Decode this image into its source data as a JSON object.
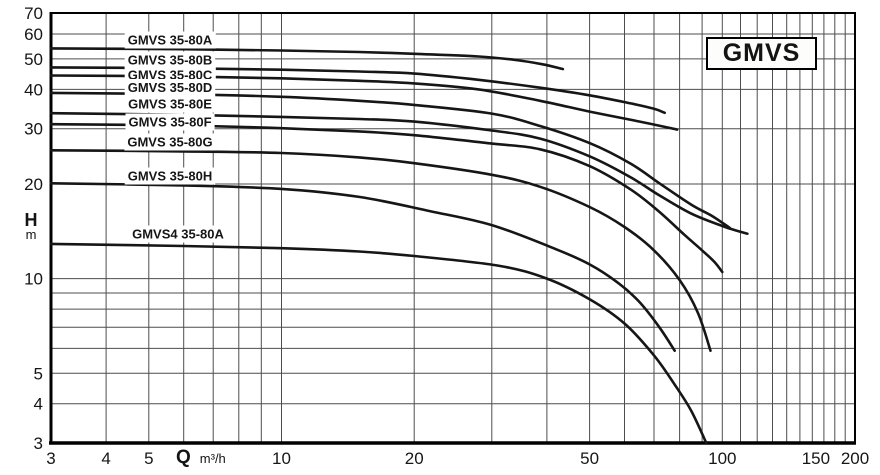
{
  "title_box": {
    "label": "GMVS"
  },
  "axes": {
    "x": {
      "symbol": "Q",
      "unit": "m³/h",
      "scale": "log",
      "min": 3,
      "max": 200,
      "tick_labels": [
        "3",
        "4",
        "5",
        "10",
        "20",
        "50",
        "100",
        "150",
        "200"
      ],
      "tick_values": [
        3,
        4,
        5,
        10,
        20,
        50,
        100,
        150,
        200
      ],
      "gridline_values": [
        3,
        4,
        5,
        6,
        7,
        8,
        9,
        10,
        20,
        30,
        40,
        50,
        60,
        70,
        80,
        90,
        100,
        110,
        120,
        130,
        140,
        150,
        160,
        170,
        180,
        190,
        200
      ]
    },
    "y": {
      "symbol": "H",
      "unit": "m",
      "scale": "log",
      "min": 3,
      "max": 70,
      "tick_labels": [
        "70",
        "60",
        "50",
        "40",
        "30",
        "20",
        "10",
        "5",
        "4",
        "3"
      ],
      "tick_values": [
        70,
        60,
        50,
        40,
        30,
        20,
        10,
        5,
        4,
        3
      ],
      "gridline_values": [
        3,
        4,
        5,
        6,
        7,
        8,
        9,
        10,
        20,
        30,
        40,
        50,
        60,
        70
      ]
    }
  },
  "chart_data": {
    "type": "line",
    "title": "GMVS",
    "xlabel": "Q (m³/h)",
    "ylabel": "H (m)",
    "x_scale": "log",
    "y_scale": "log",
    "xlim": [
      3,
      200
    ],
    "ylim": [
      3,
      70
    ],
    "grid": true,
    "legend_position": "labels-on-curves",
    "series": [
      {
        "name": "GMVS 35-80A",
        "points": [
          [
            3,
            54
          ],
          [
            6,
            53.7
          ],
          [
            10,
            53.2
          ],
          [
            15,
            52.6
          ],
          [
            20,
            51.9
          ],
          [
            28,
            50.9
          ],
          [
            34,
            49.6
          ],
          [
            39,
            48.1
          ],
          [
            43.5,
            46.4
          ]
        ]
      },
      {
        "name": "GMVS 35-80B",
        "points": [
          [
            3,
            47
          ],
          [
            6,
            46.7
          ],
          [
            10,
            46.2
          ],
          [
            15,
            45.6
          ],
          [
            20,
            44.9
          ],
          [
            28,
            42.9
          ],
          [
            38.6,
            40.5
          ],
          [
            50,
            38.3
          ],
          [
            62,
            36.1
          ],
          [
            70,
            34.7
          ],
          [
            74,
            33.7
          ]
        ]
      },
      {
        "name": "GMVS 35-80C",
        "points": [
          [
            3,
            44.3
          ],
          [
            6,
            44
          ],
          [
            10,
            43.4
          ],
          [
            15,
            42.6
          ],
          [
            20,
            41.8
          ],
          [
            28,
            40
          ],
          [
            38.6,
            36.8
          ],
          [
            50,
            34
          ],
          [
            65,
            31.6
          ],
          [
            74,
            30.4
          ],
          [
            79,
            29.8
          ]
        ]
      },
      {
        "name": "GMVS 35-80D",
        "points": [
          [
            3,
            39
          ],
          [
            6,
            38.6
          ],
          [
            10,
            37.9
          ],
          [
            15,
            36.8
          ],
          [
            20,
            35.7
          ],
          [
            30,
            33.5
          ],
          [
            38.6,
            30.6
          ],
          [
            50,
            27
          ],
          [
            62,
            23.2
          ],
          [
            72,
            20.1
          ],
          [
            85,
            17.2
          ],
          [
            95,
            15.8
          ],
          [
            104,
            14.5
          ]
        ]
      },
      {
        "name": "GMVS 35-80E",
        "points": [
          [
            3,
            33.6
          ],
          [
            6,
            33.2
          ],
          [
            10,
            32.7
          ],
          [
            15,
            32.2
          ],
          [
            20,
            31.6
          ],
          [
            30,
            29.6
          ],
          [
            38.6,
            27.9
          ],
          [
            50,
            24.5
          ],
          [
            62,
            21
          ],
          [
            72,
            18.4
          ],
          [
            85,
            16.1
          ],
          [
            100,
            14.7
          ],
          [
            108,
            14.2
          ],
          [
            114,
            13.9
          ]
        ]
      },
      {
        "name": "GMVS 35-80F",
        "points": [
          [
            3,
            31
          ],
          [
            6,
            30.7
          ],
          [
            10,
            30.1
          ],
          [
            15,
            29.4
          ],
          [
            20,
            28.6
          ],
          [
            30,
            26.9
          ],
          [
            38.6,
            25.8
          ],
          [
            50,
            22.8
          ],
          [
            62,
            19.2
          ],
          [
            72,
            16.3
          ],
          [
            82,
            13.8
          ],
          [
            90,
            12.3
          ],
          [
            96,
            11.3
          ],
          [
            100,
            10.5
          ]
        ]
      },
      {
        "name": "GMVS 35-80G",
        "points": [
          [
            3,
            25.6
          ],
          [
            6,
            25.4
          ],
          [
            10,
            25.1
          ],
          [
            15,
            24.3
          ],
          [
            20,
            23.3
          ],
          [
            30,
            21.4
          ],
          [
            38.6,
            19.6
          ],
          [
            50,
            16.9
          ],
          [
            60,
            14.6
          ],
          [
            70,
            12.3
          ],
          [
            80,
            9.9
          ],
          [
            88,
            7.8
          ],
          [
            94,
            5.9
          ]
        ]
      },
      {
        "name": "GMVS 35-80H",
        "points": [
          [
            3,
            20.1
          ],
          [
            6,
            19.8
          ],
          [
            10,
            19.3
          ],
          [
            15,
            18.2
          ],
          [
            21.7,
            16.4
          ],
          [
            30,
            14.8
          ],
          [
            42,
            12.4
          ],
          [
            50,
            11.1
          ],
          [
            58,
            9.7
          ],
          [
            65,
            8.4
          ],
          [
            72,
            7
          ],
          [
            78,
            5.9
          ]
        ]
      },
      {
        "name": "GMVS4 35-80A",
        "points": [
          [
            3,
            12.9
          ],
          [
            6,
            12.7
          ],
          [
            10,
            12.5
          ],
          [
            15,
            12.2
          ],
          [
            20,
            11.8
          ],
          [
            31,
            11
          ],
          [
            40,
            10
          ],
          [
            50,
            8.6
          ],
          [
            60,
            7.2
          ],
          [
            70,
            5.7
          ],
          [
            78,
            4.6
          ],
          [
            85,
            3.8
          ],
          [
            92,
            3
          ]
        ]
      }
    ]
  },
  "colors": {
    "curve": "#161616",
    "grid": "#4d4d4d",
    "axis": "#000000",
    "background": "#ffffff",
    "text": "#161616",
    "label_halo": "#ffffff"
  }
}
